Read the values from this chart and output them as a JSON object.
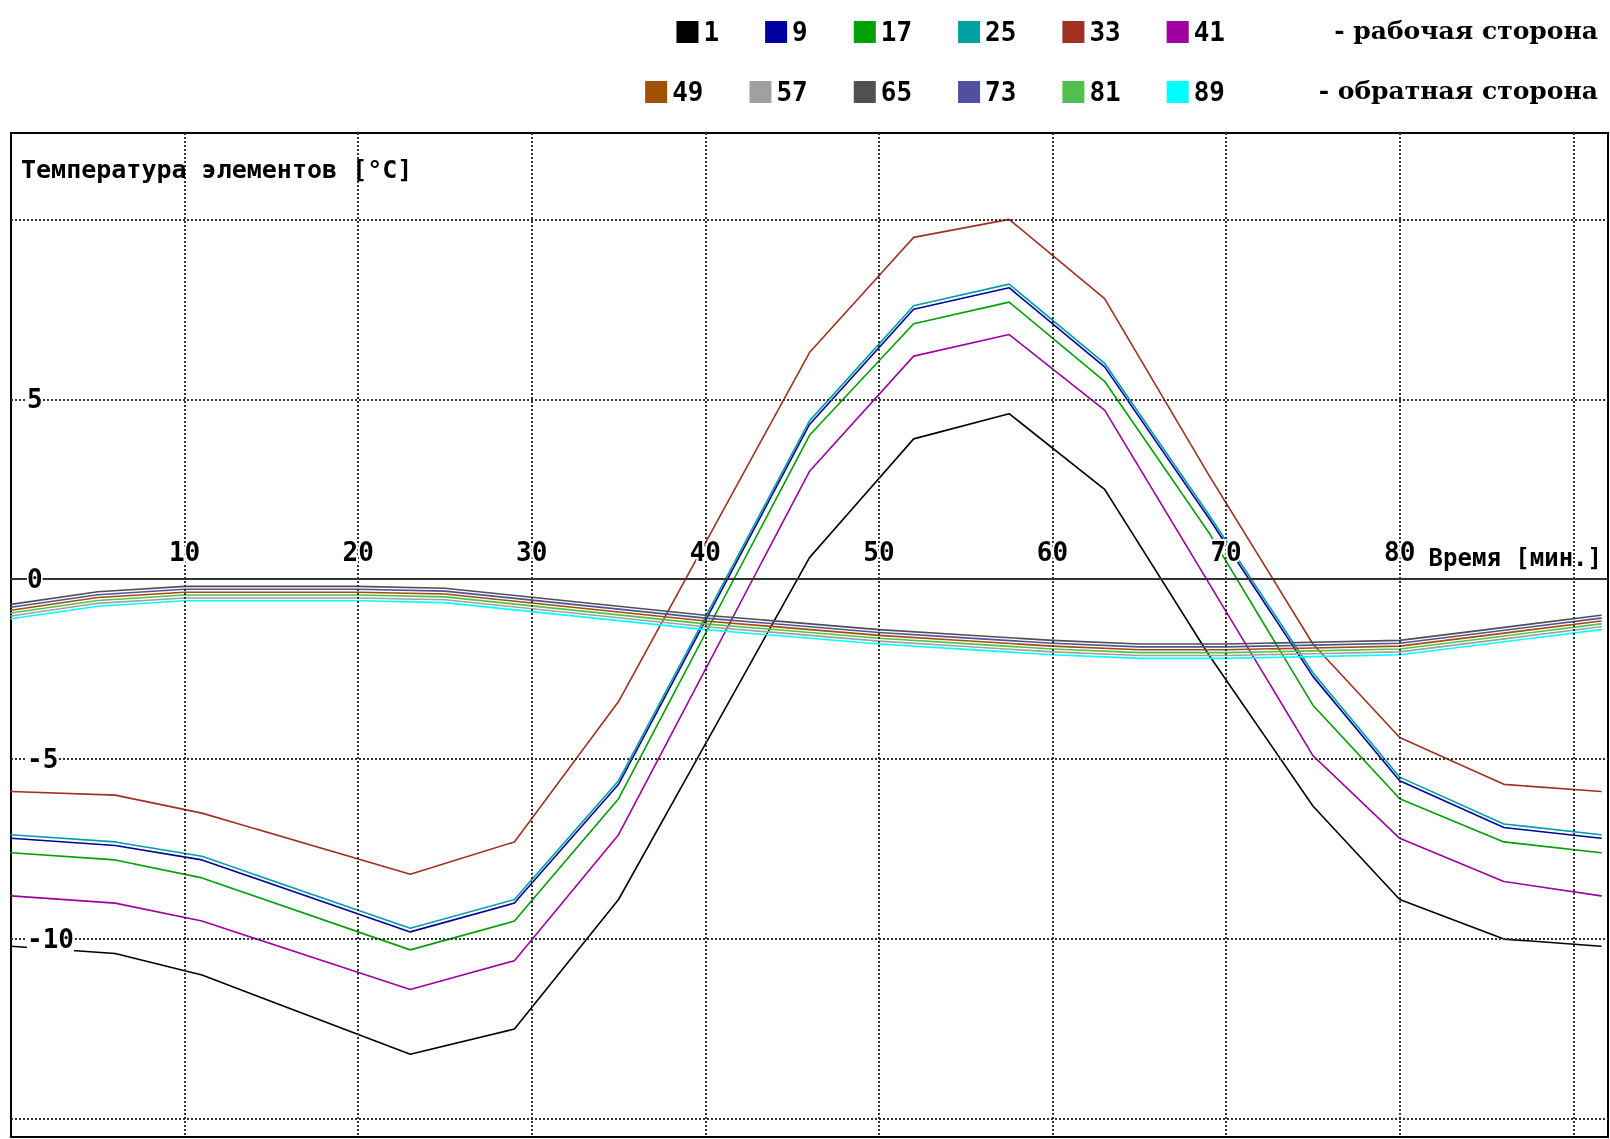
{
  "chart_data": {
    "type": "line",
    "xlabel": "Время [мин.]",
    "ylabel": "Температура элементов [°C]",
    "annotations": [
      "- рабочая сторона",
      "- обратная сторона"
    ],
    "x": [
      0,
      6,
      11,
      23,
      29,
      35,
      46,
      52,
      57.5,
      63,
      69,
      75,
      80,
      86,
      91.6
    ],
    "series": [
      {
        "name": "1",
        "color": "#000000",
        "values": [
          -10.2,
          -10.4,
          -11.0,
          -13.2,
          -12.5,
          -8.9,
          0.6,
          3.9,
          4.6,
          2.5,
          -2.1,
          -6.3,
          -8.9,
          -10.0,
          -10.2
        ]
      },
      {
        "name": "9",
        "color": "#0000a0",
        "values": [
          -7.2,
          -7.4,
          -7.8,
          -9.8,
          -9.0,
          -5.7,
          4.3,
          7.5,
          8.1,
          5.9,
          1.7,
          -2.7,
          -5.6,
          -6.9,
          -7.2
        ]
      },
      {
        "name": "17",
        "color": "#00a000",
        "values": [
          -7.6,
          -7.8,
          -8.3,
          -10.3,
          -9.5,
          -6.1,
          4.0,
          7.1,
          7.7,
          5.5,
          1.3,
          -3.5,
          -6.1,
          -7.3,
          -7.6
        ]
      },
      {
        "name": "25",
        "color": "#00a0a0",
        "values": [
          -7.1,
          -7.3,
          -7.7,
          -9.7,
          -8.9,
          -5.6,
          4.4,
          7.6,
          8.2,
          6.0,
          1.8,
          -2.6,
          -5.5,
          -6.8,
          -7.1
        ]
      },
      {
        "name": "33",
        "color": "#a03020",
        "values": [
          -5.9,
          -6.0,
          -6.5,
          -8.2,
          -7.3,
          -3.4,
          6.3,
          9.5,
          10.0,
          7.8,
          2.9,
          -1.8,
          -4.4,
          -5.7,
          -5.9
        ]
      },
      {
        "name": "41",
        "color": "#a000a0",
        "values": [
          -8.8,
          -9.0,
          -9.5,
          -11.4,
          -10.6,
          -7.1,
          3.0,
          6.2,
          6.8,
          4.7,
          -0.1,
          -4.9,
          -7.2,
          -8.4,
          -8.8
        ]
      },
      {
        "name": "49",
        "color": "#a05000",
        "x": [
          0,
          5,
          10,
          15,
          20,
          25,
          30,
          35,
          40,
          45,
          50,
          55,
          60,
          65,
          70,
          75,
          80,
          85,
          91.6
        ],
        "values": [
          -0.86,
          -0.51,
          -0.36,
          -0.36,
          -0.36,
          -0.41,
          -0.66,
          -0.91,
          -1.16,
          -1.36,
          -1.56,
          -1.71,
          -1.86,
          -1.96,
          -1.96,
          -1.91,
          -1.86,
          -1.56,
          -1.16
        ]
      },
      {
        "name": "57",
        "color": "#a0a0a0",
        "x": [
          0,
          5,
          10,
          15,
          20,
          25,
          30,
          35,
          40,
          45,
          50,
          55,
          60,
          65,
          70,
          75,
          80,
          85,
          91.6
        ],
        "values": [
          -1.02,
          -0.67,
          -0.52,
          -0.52,
          -0.52,
          -0.57,
          -0.82,
          -1.07,
          -1.32,
          -1.52,
          -1.72,
          -1.87,
          -2.02,
          -2.12,
          -2.12,
          -2.07,
          -2.02,
          -1.72,
          -1.32
        ]
      },
      {
        "name": "65",
        "color": "#505050",
        "x": [
          0,
          5,
          10,
          15,
          20,
          25,
          30,
          35,
          40,
          45,
          50,
          55,
          60,
          65,
          70,
          75,
          80,
          85,
          91.6
        ],
        "values": [
          -0.7,
          -0.35,
          -0.2,
          -0.2,
          -0.2,
          -0.25,
          -0.5,
          -0.75,
          -1.0,
          -1.2,
          -1.4,
          -1.55,
          -1.7,
          -1.8,
          -1.8,
          -1.75,
          -1.7,
          -1.4,
          -1.0
        ]
      },
      {
        "name": "73",
        "color": "#5050a0",
        "x": [
          0,
          5,
          10,
          15,
          20,
          25,
          30,
          35,
          40,
          45,
          50,
          55,
          60,
          65,
          70,
          75,
          80,
          85,
          91.6
        ],
        "values": [
          -0.78,
          -0.43,
          -0.28,
          -0.28,
          -0.28,
          -0.33,
          -0.58,
          -0.83,
          -1.08,
          -1.28,
          -1.48,
          -1.63,
          -1.78,
          -1.88,
          -1.88,
          -1.83,
          -1.78,
          -1.48,
          -1.08
        ]
      },
      {
        "name": "81",
        "color": "#50c050",
        "x": [
          0,
          5,
          10,
          15,
          20,
          25,
          30,
          35,
          40,
          45,
          50,
          55,
          60,
          65,
          70,
          75,
          80,
          85,
          91.6
        ],
        "values": [
          -0.94,
          -0.59,
          -0.44,
          -0.44,
          -0.44,
          -0.49,
          -0.74,
          -0.99,
          -1.24,
          -1.44,
          -1.64,
          -1.79,
          -1.94,
          -2.04,
          -2.04,
          -1.99,
          -1.94,
          -1.64,
          -1.24
        ]
      },
      {
        "name": "89",
        "color": "#00ffff",
        "x": [
          0,
          5,
          10,
          15,
          20,
          25,
          30,
          35,
          40,
          45,
          50,
          55,
          60,
          65,
          70,
          75,
          80,
          85,
          91.6
        ],
        "values": [
          -1.1,
          -0.75,
          -0.6,
          -0.6,
          -0.6,
          -0.65,
          -0.9,
          -1.15,
          -1.4,
          -1.6,
          -1.8,
          -1.95,
          -2.1,
          -2.2,
          -2.2,
          -2.15,
          -2.1,
          -1.8,
          -1.4
        ]
      }
    ],
    "xlim": [
      0,
      92
    ],
    "xticks": [
      10,
      20,
      30,
      40,
      50,
      60,
      70,
      80,
      {
        "value": 90,
        "label": null
      }
    ],
    "ylim": [
      -15.5,
      12.4
    ],
    "yticks": [
      {
        "value": -15,
        "label": null
      },
      -10,
      -5,
      0,
      5,
      {
        "value": 10,
        "label": null
      }
    ],
    "grid": true,
    "legend": "top right",
    "marker": "none",
    "line_style": "solid"
  }
}
